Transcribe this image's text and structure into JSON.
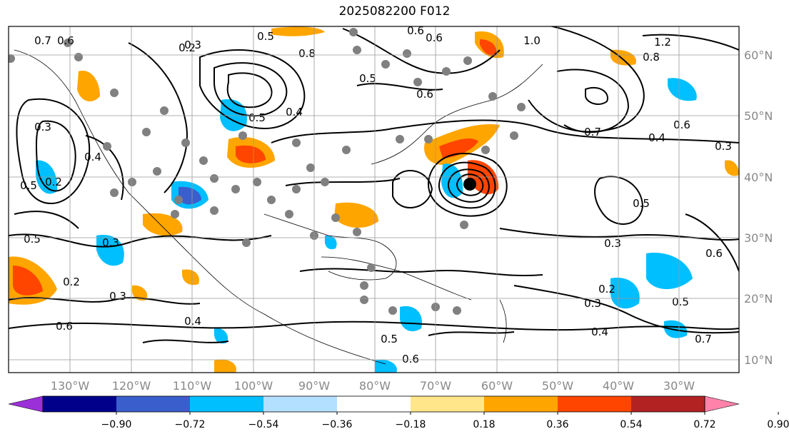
{
  "title": "2025082200 F012",
  "map": {
    "type": "contour-map",
    "grid": true,
    "lon_ticks": [
      "130°W",
      "120°W",
      "110°W",
      "100°W",
      "90°W",
      "80°W",
      "70°W",
      "60°W",
      "50°W",
      "40°W",
      "30°W"
    ],
    "lat_ticks": [
      "60°N",
      "50°N",
      "40°N",
      "30°N",
      "20°N",
      "10°N"
    ],
    "contour_labels": [
      "0.6",
      "0.7",
      "0.3",
      "0.2",
      "0.5",
      "0.6",
      "0.6",
      "0.5",
      "0.6",
      "0.8",
      "0.4",
      "0.5",
      "1.0",
      "1.2",
      "0.8",
      "0.7",
      "0.4",
      "0.6",
      "0.3",
      "0.5",
      "0.3",
      "0.5",
      "0.4",
      "0.3",
      "0.2",
      "0.5",
      "0.2",
      "0.3",
      "0.4",
      "0.6",
      "0.5",
      "0.6",
      "0.3",
      "0.2",
      "0.4",
      "0.3",
      "0.5",
      "0.7",
      "0.6"
    ],
    "marker": "storm-center"
  },
  "colorbar": {
    "ticks": [
      "−0.90",
      "−0.72",
      "−0.54",
      "−0.36",
      "−0.18",
      "0.18",
      "0.36",
      "0.54",
      "0.72",
      "0.90"
    ],
    "colors": [
      "#9b30d9",
      "#00008b",
      "#3a5fcd",
      "#00bfff",
      "#b3e0ff",
      "#ffffff",
      "#ffe68a",
      "#ffa500",
      "#ff4500",
      "#b22222",
      "#ff82ab"
    ]
  }
}
